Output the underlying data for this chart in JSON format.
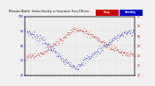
{
  "humidity_color": "#0000cc",
  "temp_color": "#cc0000",
  "legend_humidity_color": "#2222ff",
  "legend_temp_color": "#ff2222",
  "background_color": "#f0f0f0",
  "plot_bg_color": "#f0f0f0",
  "grid_color": "#cccccc",
  "ylim_humidity": [
    20,
    100
  ],
  "ylim_temp": [
    20,
    80
  ],
  "yticks_humidity": [
    20,
    40,
    60,
    80,
    100
  ],
  "yticks_temp": [
    20,
    30,
    40,
    50,
    60,
    70,
    80
  ],
  "num_points": 288,
  "seed": 7
}
